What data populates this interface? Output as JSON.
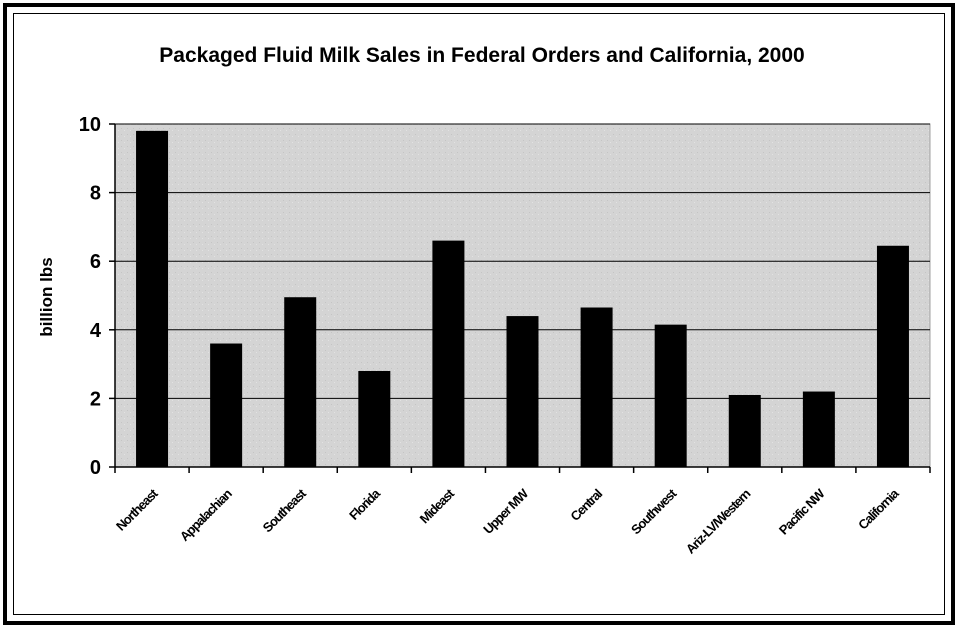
{
  "chart_data": {
    "type": "bar",
    "title": "Packaged Fluid Milk Sales in Federal Orders and California, 2000",
    "ylabel": "billion lbs",
    "xlabel": "",
    "ylim": [
      0,
      10
    ],
    "yticks": [
      0,
      2,
      4,
      6,
      8,
      10
    ],
    "grid": true,
    "categories": [
      "Northeast",
      "Appalachian",
      "Southeast",
      "Florida",
      "Mideast",
      "Upper MW",
      "Central",
      "Southwest",
      "Ariz-LV/Western",
      "Pacific NW",
      "California"
    ],
    "values": [
      9.8,
      3.6,
      4.95,
      2.8,
      6.6,
      4.4,
      4.65,
      4.15,
      2.1,
      2.2,
      6.45
    ],
    "colors": {
      "bar": "#000000",
      "plot_bg": "#d4d4d4",
      "grid": "#000000"
    }
  }
}
